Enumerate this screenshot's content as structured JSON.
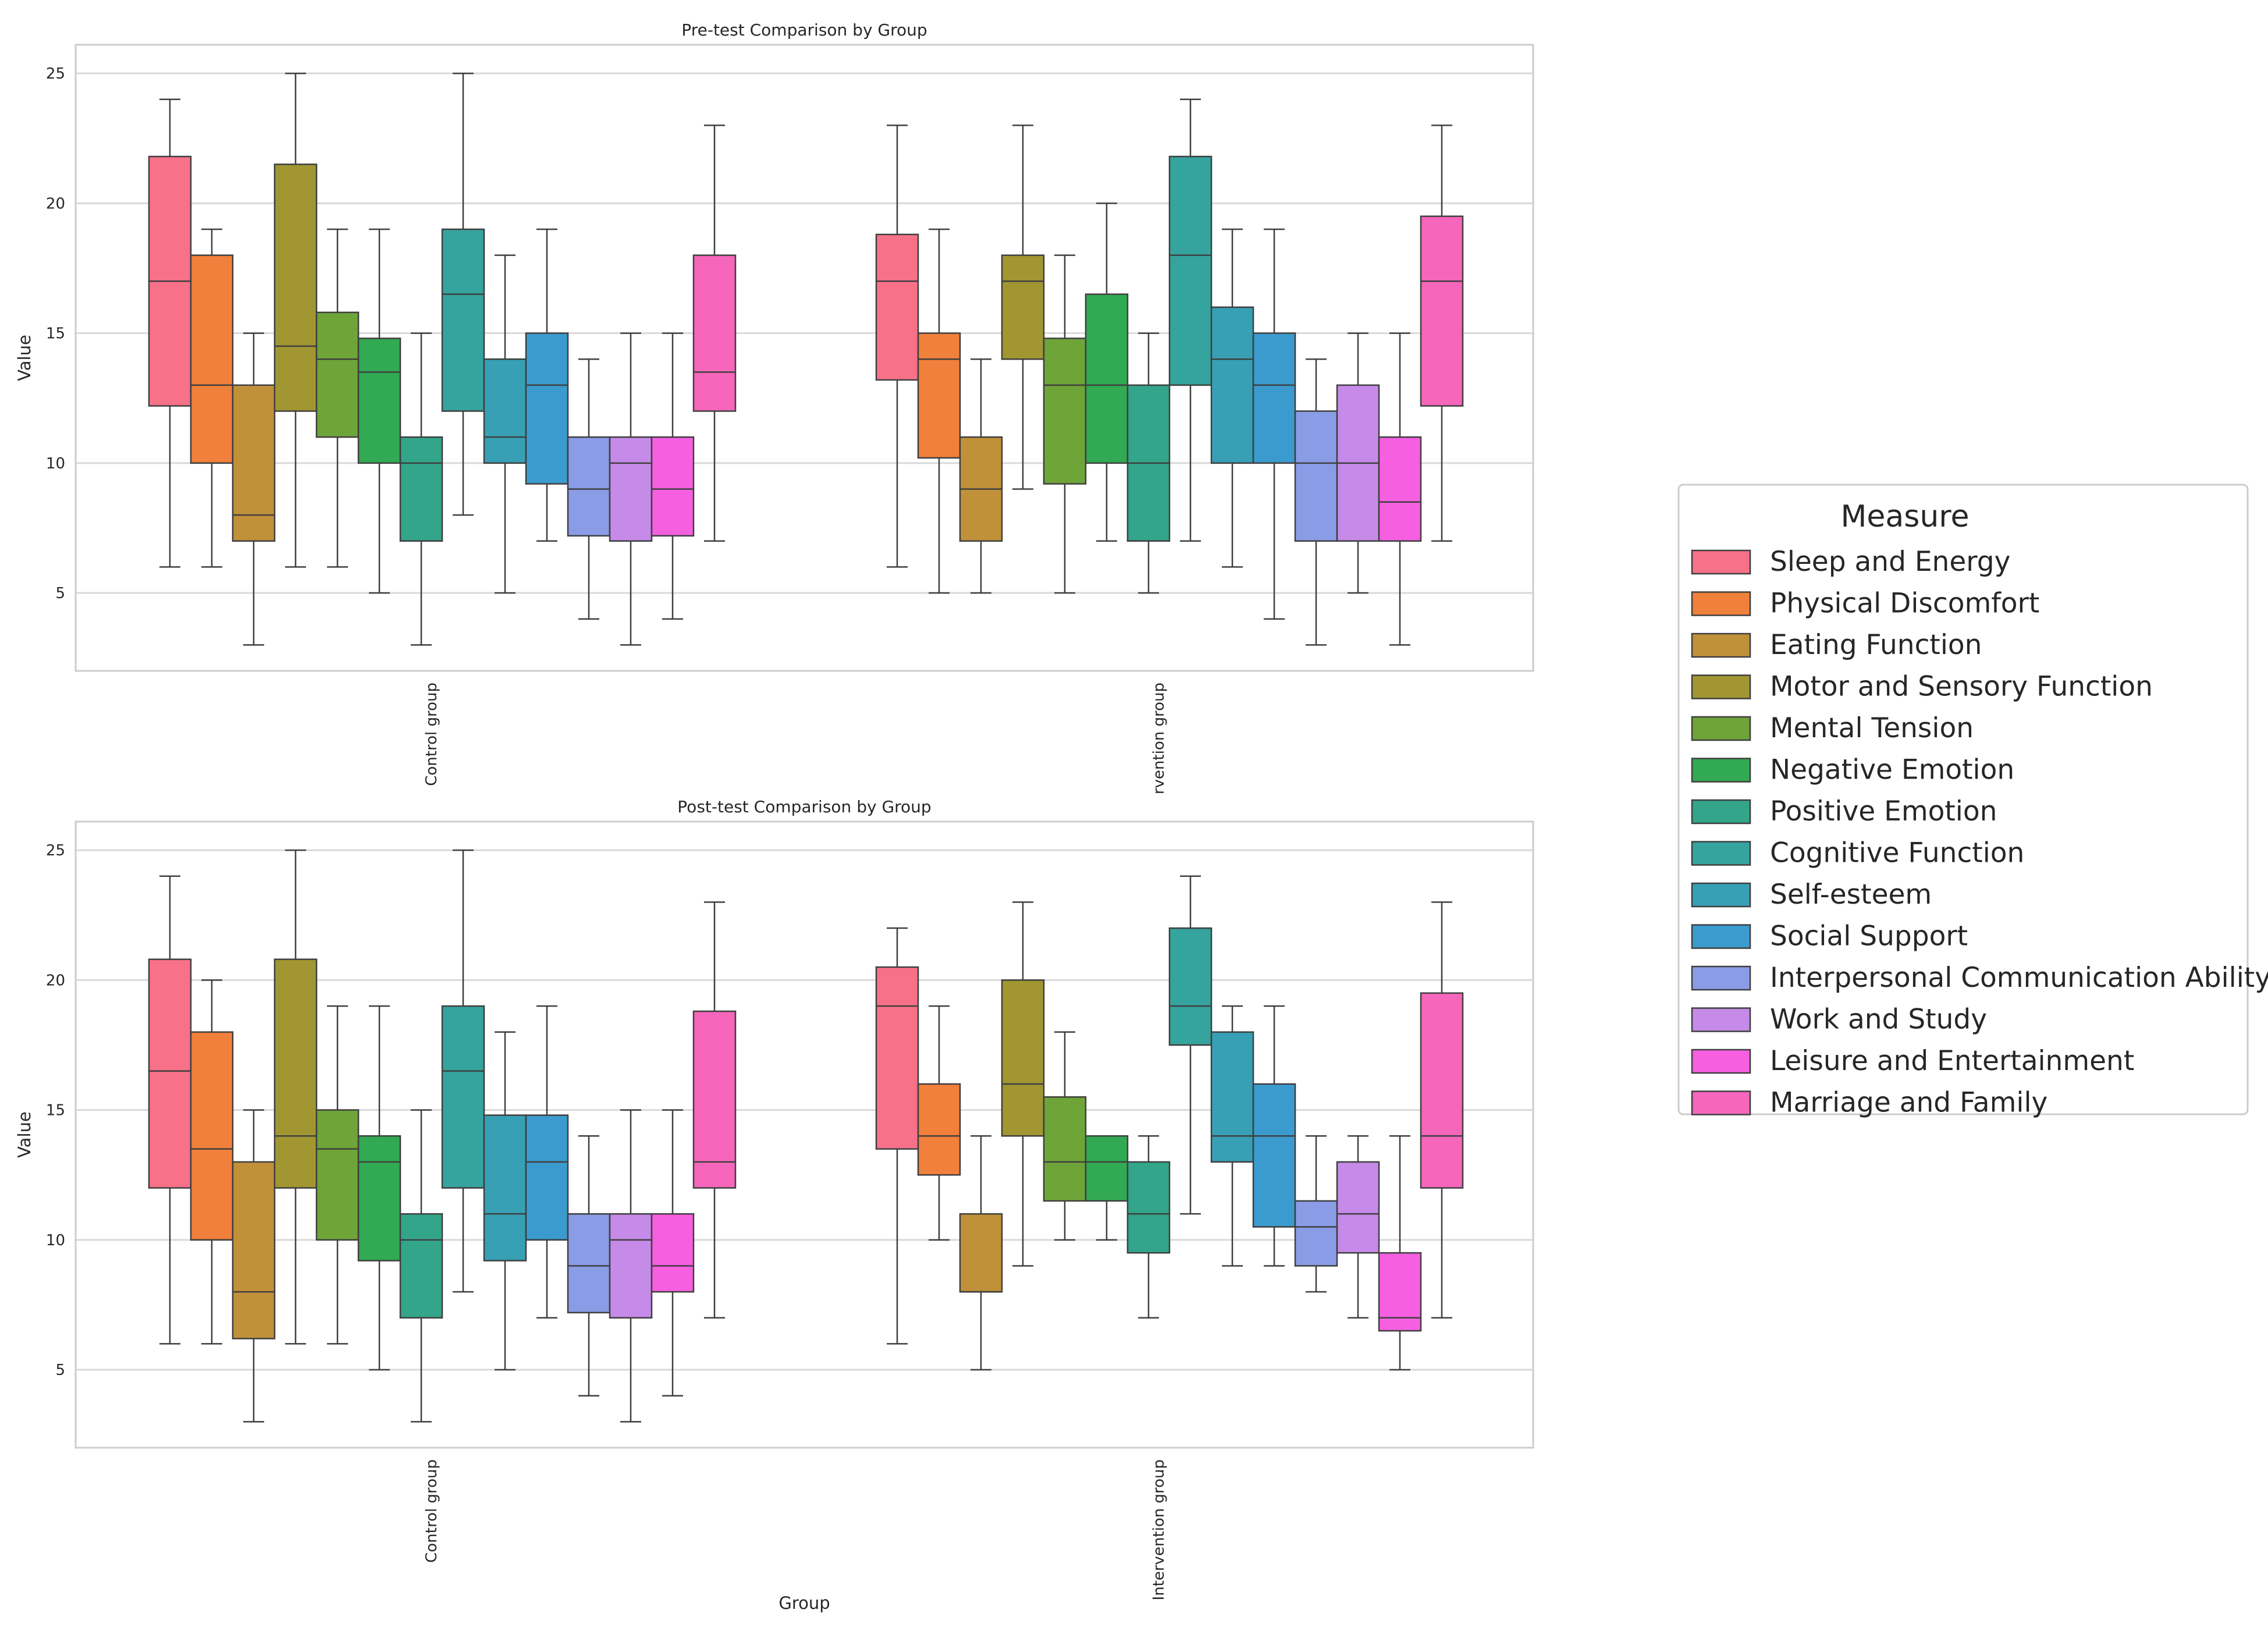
{
  "chart_data": {
    "type": "box",
    "measures": [
      "Sleep and Energy",
      "Physical Discomfort",
      "Eating Function",
      "Motor and Sensory Function",
      "Mental Tension",
      "Negative Emotion",
      "Positive Emotion",
      "Cognitive Function",
      "Self-esteem",
      "Social Support",
      "Interpersonal Communication Ability",
      "Work and Study",
      "Leisure and Entertainment",
      "Marriage and Family"
    ],
    "colors": [
      "#f77189",
      "#f0803b",
      "#c1913a",
      "#a29632",
      "#6fa439",
      "#32a953",
      "#33a58a",
      "#35a39e",
      "#37a0b4",
      "#3b9bce",
      "#8a9ce6",
      "#c68ae8",
      "#f55fe0",
      "#f666bb"
    ],
    "legend": {
      "title": "Measure"
    },
    "panels": [
      {
        "title": "Pre-test Comparison by Group",
        "ylabel": "Value",
        "xlabel": "",
        "ylim": [
          2,
          26.1
        ],
        "yticks": [
          5,
          10,
          15,
          20,
          25
        ],
        "groups": [
          {
            "label": "Control group",
            "boxes": [
              {
                "min": 6,
                "q1": 12.2,
                "median": 17,
                "q3": 21.8,
                "max": 24
              },
              {
                "min": 6,
                "q1": 10,
                "median": 13,
                "q3": 18,
                "max": 19
              },
              {
                "min": 3,
                "q1": 7,
                "median": 8,
                "q3": 13,
                "max": 15
              },
              {
                "min": 6,
                "q1": 12,
                "median": 14.5,
                "q3": 21.5,
                "max": 25
              },
              {
                "min": 6,
                "q1": 11,
                "median": 14,
                "q3": 15.8,
                "max": 19
              },
              {
                "min": 5,
                "q1": 10,
                "median": 13.5,
                "q3": 14.8,
                "max": 19
              },
              {
                "min": 3,
                "q1": 7,
                "median": 10,
                "q3": 11,
                "max": 15
              },
              {
                "min": 8,
                "q1": 12,
                "median": 16.5,
                "q3": 19,
                "max": 25
              },
              {
                "min": 5,
                "q1": 10,
                "median": 11,
                "q3": 14,
                "max": 18
              },
              {
                "min": 7,
                "q1": 9.2,
                "median": 13,
                "q3": 15,
                "max": 19
              },
              {
                "min": 4,
                "q1": 7.2,
                "median": 9,
                "q3": 11,
                "max": 14
              },
              {
                "min": 3,
                "q1": 7,
                "median": 10,
                "q3": 11,
                "max": 15
              },
              {
                "min": 4,
                "q1": 7.2,
                "median": 9,
                "q3": 11,
                "max": 15
              },
              {
                "min": 7,
                "q1": 12,
                "median": 13.5,
                "q3": 18,
                "max": 23
              }
            ]
          },
          {
            "label": "rvention group",
            "boxes": [
              {
                "min": 6,
                "q1": 13.2,
                "median": 17,
                "q3": 18.8,
                "max": 23
              },
              {
                "min": 5,
                "q1": 10.2,
                "median": 14,
                "q3": 15,
                "max": 19
              },
              {
                "min": 5,
                "q1": 7,
                "median": 9,
                "q3": 11,
                "max": 14
              },
              {
                "min": 9,
                "q1": 14,
                "median": 17,
                "q3": 18,
                "max": 23
              },
              {
                "min": 5,
                "q1": 9.2,
                "median": 13,
                "q3": 14.8,
                "max": 18
              },
              {
                "min": 7,
                "q1": 10,
                "median": 13,
                "q3": 16.5,
                "max": 20
              },
              {
                "min": 5,
                "q1": 7,
                "median": 10,
                "q3": 13,
                "max": 15
              },
              {
                "min": 7,
                "q1": 13,
                "median": 18,
                "q3": 21.8,
                "max": 24
              },
              {
                "min": 6,
                "q1": 10,
                "median": 14,
                "q3": 16,
                "max": 19
              },
              {
                "min": 4,
                "q1": 10,
                "median": 13,
                "q3": 15,
                "max": 19
              },
              {
                "min": 3,
                "q1": 7,
                "median": 10,
                "q3": 12,
                "max": 14
              },
              {
                "min": 5,
                "q1": 7,
                "median": 10,
                "q3": 13,
                "max": 15
              },
              {
                "min": 3,
                "q1": 7,
                "median": 8.5,
                "q3": 11,
                "max": 15
              },
              {
                "min": 7,
                "q1": 12.2,
                "median": 17,
                "q3": 19.5,
                "max": 23
              }
            ]
          }
        ]
      },
      {
        "title": "Post-test Comparison by Group",
        "ylabel": "Value",
        "xlabel": "Group",
        "ylim": [
          2,
          26.1
        ],
        "yticks": [
          5,
          10,
          15,
          20,
          25
        ],
        "groups": [
          {
            "label": "Control group",
            "boxes": [
              {
                "min": 6,
                "q1": 12,
                "median": 16.5,
                "q3": 20.8,
                "max": 24
              },
              {
                "min": 6,
                "q1": 10,
                "median": 13.5,
                "q3": 18,
                "max": 20
              },
              {
                "min": 3,
                "q1": 6.2,
                "median": 8,
                "q3": 13,
                "max": 15
              },
              {
                "min": 6,
                "q1": 12,
                "median": 14,
                "q3": 20.8,
                "max": 25
              },
              {
                "min": 6,
                "q1": 10,
                "median": 13.5,
                "q3": 15,
                "max": 19
              },
              {
                "min": 5,
                "q1": 9.2,
                "median": 13,
                "q3": 14,
                "max": 19
              },
              {
                "min": 3,
                "q1": 7,
                "median": 10,
                "q3": 11,
                "max": 15
              },
              {
                "min": 8,
                "q1": 12,
                "median": 16.5,
                "q3": 19,
                "max": 25
              },
              {
                "min": 5,
                "q1": 9.2,
                "median": 11,
                "q3": 14.8,
                "max": 18
              },
              {
                "min": 7,
                "q1": 10,
                "median": 13,
                "q3": 14.8,
                "max": 19
              },
              {
                "min": 4,
                "q1": 7.2,
                "median": 9,
                "q3": 11,
                "max": 14
              },
              {
                "min": 3,
                "q1": 7,
                "median": 10,
                "q3": 11,
                "max": 15
              },
              {
                "min": 4,
                "q1": 8,
                "median": 9,
                "q3": 11,
                "max": 15
              },
              {
                "min": 7,
                "q1": 12,
                "median": 13,
                "q3": 18.8,
                "max": 23
              }
            ]
          },
          {
            "label": "Intervention group",
            "boxes": [
              {
                "min": 6,
                "q1": 13.5,
                "median": 19,
                "q3": 20.5,
                "max": 22
              },
              {
                "min": 10,
                "q1": 12.5,
                "median": 14,
                "q3": 16,
                "max": 19
              },
              {
                "min": 5,
                "q1": 8,
                "median": 8,
                "q3": 11,
                "max": 14
              },
              {
                "min": 9,
                "q1": 14,
                "median": 16,
                "q3": 20,
                "max": 23
              },
              {
                "min": 10,
                "q1": 11.5,
                "median": 13,
                "q3": 15.5,
                "max": 18
              },
              {
                "min": 10,
                "q1": 11.5,
                "median": 13,
                "q3": 14,
                "max": 14
              },
              {
                "min": 7,
                "q1": 9.5,
                "median": 11,
                "q3": 13,
                "max": 14
              },
              {
                "min": 11,
                "q1": 17.5,
                "median": 19,
                "q3": 22,
                "max": 24
              },
              {
                "min": 9,
                "q1": 13,
                "median": 14,
                "q3": 18,
                "max": 19
              },
              {
                "min": 9,
                "q1": 10.5,
                "median": 14,
                "q3": 16,
                "max": 19
              },
              {
                "min": 8,
                "q1": 9,
                "median": 10.5,
                "q3": 11.5,
                "max": 14
              },
              {
                "min": 7,
                "q1": 9.5,
                "median": 11,
                "q3": 13,
                "max": 14
              },
              {
                "min": 5,
                "q1": 6.5,
                "median": 7,
                "q3": 9.5,
                "max": 14
              },
              {
                "min": 7,
                "q1": 12,
                "median": 14,
                "q3": 19.5,
                "max": 23
              }
            ]
          }
        ]
      }
    ]
  }
}
